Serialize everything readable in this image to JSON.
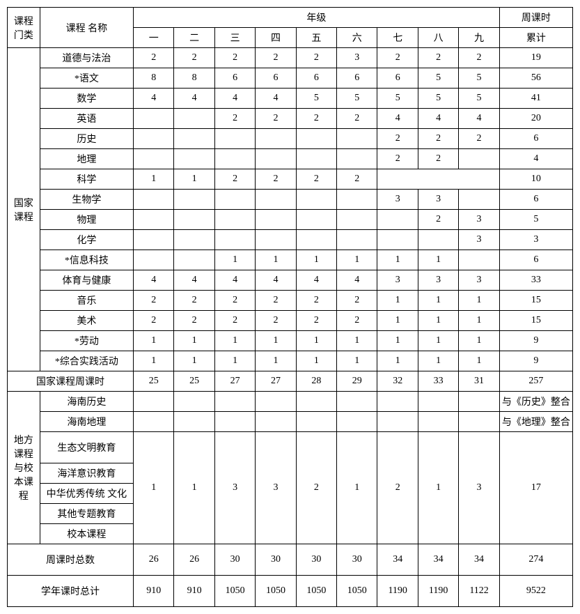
{
  "headers": {
    "category": "课程\n门类",
    "name": "课程\n名称",
    "grade_group": "年级",
    "grades": [
      "一",
      "二",
      "三",
      "四",
      "五",
      "六",
      "七",
      "八",
      "九"
    ],
    "total": "周课时",
    "total_sub": "累计"
  },
  "categories": {
    "national": "国家\n课程",
    "local": "地方\n课程\n与校\n本课\n程"
  },
  "national_rows": [
    {
      "name": "道德与法治",
      "g": [
        "2",
        "2",
        "2",
        "2",
        "2",
        "3",
        "2",
        "2",
        "2"
      ],
      "total": "19"
    },
    {
      "name": "*语文",
      "g": [
        "8",
        "8",
        "6",
        "6",
        "6",
        "6",
        "6",
        "5",
        "5"
      ],
      "total": "56"
    },
    {
      "name": "数学",
      "g": [
        "4",
        "4",
        "4",
        "4",
        "5",
        "5",
        "5",
        "5",
        "5"
      ],
      "total": "41"
    },
    {
      "name": "英语",
      "g": [
        "",
        "",
        "2",
        "2",
        "2",
        "2",
        "4",
        "4",
        "4"
      ],
      "total": "20"
    },
    {
      "name": "历史",
      "g": [
        "",
        "",
        "",
        "",
        "",
        "",
        "2",
        "2",
        "2"
      ],
      "total": "6"
    },
    {
      "name": "地理",
      "g": [
        "",
        "",
        "",
        "",
        "",
        "",
        "2",
        "2",
        ""
      ],
      "total": "4"
    },
    {
      "name": "科学",
      "g": [
        "1",
        "1",
        "2",
        "2",
        "2",
        "2",
        "",
        "",
        ""
      ],
      "total": "10",
      "merge789": true
    },
    {
      "name": "生物学",
      "g": [
        "",
        "",
        "",
        "",
        "",
        "",
        "3",
        "3",
        ""
      ],
      "total": "6"
    },
    {
      "name": "物理",
      "g": [
        "",
        "",
        "",
        "",
        "",
        "",
        "",
        "2",
        "3"
      ],
      "total": "5"
    },
    {
      "name": "化学",
      "g": [
        "",
        "",
        "",
        "",
        "",
        "",
        "",
        "",
        "3"
      ],
      "total": "3"
    },
    {
      "name": "*信息科技",
      "g": [
        "",
        "",
        "1",
        "1",
        "1",
        "1",
        "1",
        "1",
        ""
      ],
      "total": "6"
    },
    {
      "name": "体育与健康",
      "g": [
        "4",
        "4",
        "4",
        "4",
        "4",
        "4",
        "3",
        "3",
        "3"
      ],
      "total": "33"
    },
    {
      "name": "音乐",
      "g": [
        "2",
        "2",
        "2",
        "2",
        "2",
        "2",
        "1",
        "1",
        "1"
      ],
      "total": "15"
    },
    {
      "name": "美术",
      "g": [
        "2",
        "2",
        "2",
        "2",
        "2",
        "2",
        "1",
        "1",
        "1"
      ],
      "total": "15"
    },
    {
      "name": "*劳动",
      "g": [
        "1",
        "1",
        "1",
        "1",
        "1",
        "1",
        "1",
        "1",
        "1"
      ],
      "total": "9"
    },
    {
      "name": "*综合实践活动",
      "g": [
        "1",
        "1",
        "1",
        "1",
        "1",
        "1",
        "1",
        "1",
        "1"
      ],
      "total": "9"
    }
  ],
  "national_subtotal": {
    "name": "国家课程周课时",
    "g": [
      "25",
      "25",
      "27",
      "27",
      "28",
      "29",
      "32",
      "33",
      "31"
    ],
    "total": "257"
  },
  "local_rows": [
    {
      "name": "海南历史",
      "g": [
        "",
        "",
        "",
        "",
        "",
        "",
        "",
        "",
        ""
      ],
      "total": "与《历史》整合"
    },
    {
      "name": "海南地理",
      "g": [
        "",
        "",
        "",
        "",
        "",
        "",
        "",
        "",
        ""
      ],
      "total": "与《地理》整合"
    }
  ],
  "eco_row": {
    "name": "生态文明教育",
    "g": [
      "1",
      "1",
      "3",
      "3",
      "2",
      "1",
      "2",
      "1",
      "3"
    ],
    "total": "17"
  },
  "merged_names": [
    "海洋意识教育",
    "中华优秀传统\n文化",
    "其他专题教育",
    "校本课程"
  ],
  "weekly_total": {
    "name": "周课时总数",
    "g": [
      "26",
      "26",
      "30",
      "30",
      "30",
      "30",
      "34",
      "34",
      "34"
    ],
    "total": "274"
  },
  "yearly_total": {
    "name": "学年课时总计",
    "g": [
      "910",
      "910",
      "1050",
      "1050",
      "1050",
      "1050",
      "1190",
      "1190",
      "1122"
    ],
    "total": "9522"
  }
}
